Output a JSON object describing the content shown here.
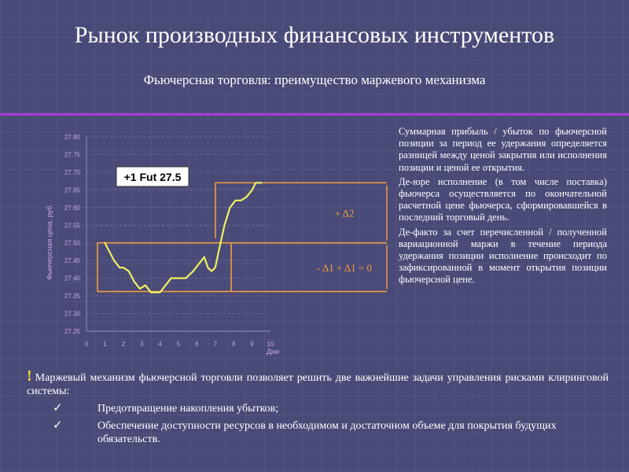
{
  "slide": {
    "title": "Рынок производных финансовых инструментов",
    "subtitle": "Фьючерсная торговля: преимущество маржевого механизма",
    "side_paragraphs": [
      "Суммарная прибыль / убыток по фьючерсной позиции за период ее удержания определяется разницей между ценой закрытия или исполнения позиции и ценой ее открытия.",
      "Де-юре исполнение (в том числе поставка) фьючерса осуществляется по окончательной расчетной цене фьючерса, сформировавшейся в последний торговый день.",
      "Де-факто за счет перечисленной / полученной вариационной маржи в течение периода удержания позиции исполнение происходит по зафиксированной в момент открытия позиции фьючерсной цене."
    ],
    "bottom": {
      "exclamation": "!",
      "lead": "Маржевый механизм фьючерсной торговли позволяет решить две важнейшие задачи управления рисками клиринговой системы:",
      "items": [
        {
          "mark": "✓",
          "text": "Предотвращение накопления убытков;"
        },
        {
          "mark": "✓",
          "text": "Обеспечение доступности ресурсов в необходимом и достаточном объеме для покрытия будущих обязательств."
        }
      ]
    }
  },
  "colors": {
    "background": "#4a4a78",
    "divider": "#a838d8",
    "curve": "#f0f060",
    "bracket": "#f0a040",
    "annotation": "#f0a040",
    "axis_text": "#c8a8e8",
    "label_bg": "#ffffff"
  },
  "chart_data": {
    "type": "line",
    "ylabel": "Фьючерсная цена, руб.",
    "xlabel": "Дни",
    "x_ticks": [
      "0",
      "1",
      "2",
      "3",
      "4",
      "5",
      "6",
      "7",
      "8",
      "9",
      "10"
    ],
    "y_ticks": [
      "27.25",
      "27.30",
      "27.35",
      "27.40",
      "27.45",
      "27.50",
      "27.55",
      "27.60",
      "27.65",
      "27.70",
      "27.75",
      "27.80"
    ],
    "xlim": [
      0,
      10
    ],
    "ylim": [
      27.25,
      27.8
    ],
    "grid": "dashed",
    "series": [
      {
        "x": [
          1.0,
          1.2,
          1.5,
          1.8,
          2.0,
          2.3,
          2.6,
          2.9,
          3.2,
          3.5,
          3.8,
          4.0,
          4.3,
          4.6,
          5.0,
          5.4,
          5.8,
          6.1,
          6.4,
          6.6,
          6.8,
          7.0,
          7.2,
          7.5,
          7.8,
          8.1,
          8.4,
          8.7,
          9.0,
          9.2,
          9.5
        ],
        "values": [
          27.5,
          27.48,
          27.45,
          27.43,
          27.43,
          27.42,
          27.39,
          27.37,
          27.38,
          27.36,
          27.36,
          27.36,
          27.38,
          27.4,
          27.4,
          27.4,
          27.42,
          27.44,
          27.46,
          27.43,
          27.42,
          27.43,
          27.48,
          27.55,
          27.6,
          27.62,
          27.62,
          27.63,
          27.65,
          27.67,
          27.67
        ]
      }
    ],
    "label": "+1 Fut 27.5",
    "annotations": [
      "+ Δ2",
      "- Δ1 + Δ1 = 0"
    ],
    "levels": [
      27.5,
      27.36,
      27.67
    ]
  }
}
